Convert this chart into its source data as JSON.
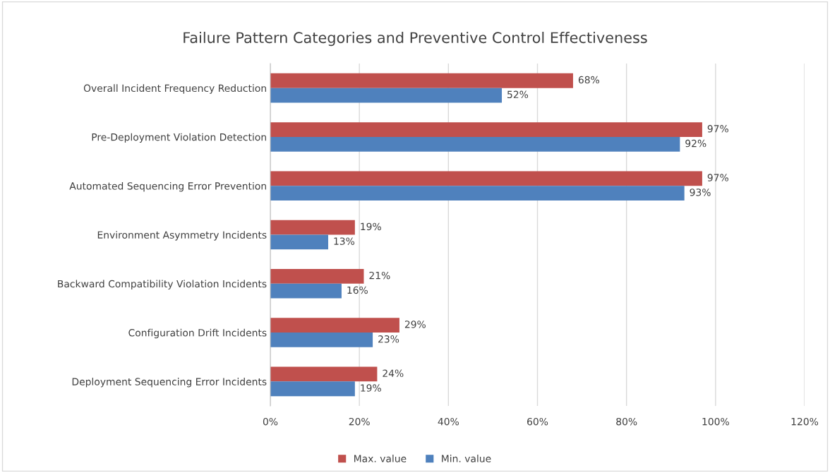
{
  "chart_data": {
    "type": "bar",
    "orientation": "horizontal",
    "title": "Failure Pattern Categories and Preventive Control Effectiveness",
    "categories": [
      "Overall Incident Frequency Reduction",
      "Pre-Deployment Violation Detection",
      "Automated Sequencing Error Prevention",
      "Environment Asymmetry Incidents",
      "Backward Compatibility Violation Incidents",
      "Configuration Drift Incidents",
      "Deployment Sequencing Error Incidents"
    ],
    "series": [
      {
        "name": "Max. value",
        "color": "#c0504d",
        "values": [
          68,
          97,
          97,
          19,
          21,
          29,
          24
        ],
        "value_labels": [
          "68%",
          "97%",
          "97%",
          "19%",
          "21%",
          "29%",
          "24%"
        ]
      },
      {
        "name": "Min. value",
        "color": "#4f81bd",
        "values": [
          52,
          92,
          93,
          13,
          16,
          23,
          19
        ],
        "value_labels": [
          "52%",
          "92%",
          "93%",
          "13%",
          "16%",
          "23%",
          "19%"
        ]
      }
    ],
    "xlim": [
      0,
      120
    ],
    "xticks": [
      {
        "value": 0,
        "label": "0%"
      },
      {
        "value": 20,
        "label": "20%"
      },
      {
        "value": 40,
        "label": "40%"
      },
      {
        "value": 60,
        "label": "60%"
      },
      {
        "value": 80,
        "label": "80%"
      },
      {
        "value": 100,
        "label": "100%"
      },
      {
        "value": 120,
        "label": "120%"
      }
    ],
    "grid": "x",
    "legend": "bottom"
  }
}
